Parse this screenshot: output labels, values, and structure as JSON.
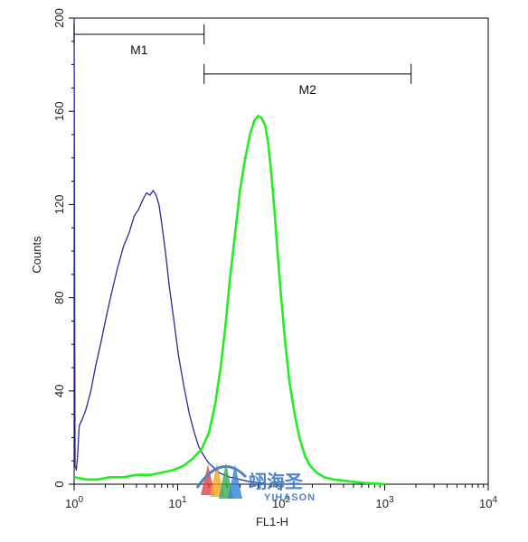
{
  "chart_data": {
    "type": "line",
    "title": "",
    "xlabel": "FL1-H",
    "ylabel": "Counts",
    "x_scale": "log",
    "xlim": [
      1,
      10000
    ],
    "ylim": [
      0,
      200
    ],
    "x_ticks": [
      {
        "value": 1,
        "base": "10",
        "exp": "0"
      },
      {
        "value": 10,
        "base": "10",
        "exp": "1"
      },
      {
        "value": 100,
        "base": "10",
        "exp": "2"
      },
      {
        "value": 1000,
        "base": "10",
        "exp": "3"
      },
      {
        "value": 10000,
        "base": "10",
        "exp": "4"
      }
    ],
    "y_ticks": [
      0,
      40,
      80,
      120,
      160,
      200
    ],
    "grid": false,
    "legend": "none",
    "series": [
      {
        "color": "#2a2a9a",
        "x": [
          1.0,
          1.02,
          1.05,
          1.08,
          1.12,
          1.2,
          1.3,
          1.45,
          1.6,
          1.8,
          2.0,
          2.3,
          2.6,
          3.0,
          3.4,
          3.8,
          4.2,
          4.6,
          5.0,
          5.4,
          5.8,
          6.2,
          6.6,
          7.0,
          7.6,
          8.3,
          9.2,
          10.2,
          11.5,
          13.0,
          14.5,
          16.0,
          18.0,
          20.0,
          22.5,
          25.0,
          28.0,
          32.0,
          36.0,
          40.0,
          45.0,
          50.0,
          56.0,
          63.0,
          70.0
        ],
        "values": [
          200,
          8,
          6,
          12,
          25,
          28,
          32,
          40,
          50,
          60,
          70,
          82,
          92,
          102,
          108,
          115,
          118,
          122,
          125,
          124,
          126,
          124,
          120,
          112,
          100,
          85,
          70,
          55,
          42,
          30,
          22,
          16,
          12,
          9,
          7,
          5,
          4,
          3,
          2.5,
          2,
          1.5,
          1,
          0.8,
          0.5,
          0.2
        ]
      },
      {
        "color": "#22ee22",
        "x": [
          1.0,
          1.3,
          1.7,
          2.2,
          3.0,
          4.0,
          5.5,
          7.0,
          9.0,
          11.5,
          14.0,
          17.0,
          20.0,
          23.0,
          26.0,
          29.0,
          32.0,
          36.0,
          40.0,
          45.0,
          50.0,
          55.0,
          60.0,
          65.0,
          70.0,
          75.0,
          80.0,
          86.0,
          92.0,
          100.0,
          110.0,
          120.0,
          135.0,
          150.0,
          170.0,
          190.0,
          220.0,
          260.0,
          320.0,
          400.0,
          500.0,
          650.0,
          800.0,
          1000.0
        ],
        "values": [
          3,
          2,
          2,
          3,
          3,
          4,
          4,
          5,
          6,
          8,
          11,
          15,
          22,
          34,
          50,
          68,
          88,
          108,
          126,
          140,
          150,
          156,
          158,
          157,
          154,
          146,
          134,
          118,
          100,
          80,
          60,
          44,
          30,
          20,
          12,
          8,
          5,
          3,
          2,
          1.5,
          1,
          0.5,
          0.3,
          0
        ]
      }
    ],
    "markers": [
      {
        "label": "M1",
        "x_start": 1,
        "x_end": 18,
        "y": 193
      },
      {
        "label": "M2",
        "x_start": 18,
        "x_end": 1800,
        "y": 176
      }
    ]
  },
  "watermark": {
    "text_cn": "翊海圣",
    "text_en": "YIHASON"
  }
}
